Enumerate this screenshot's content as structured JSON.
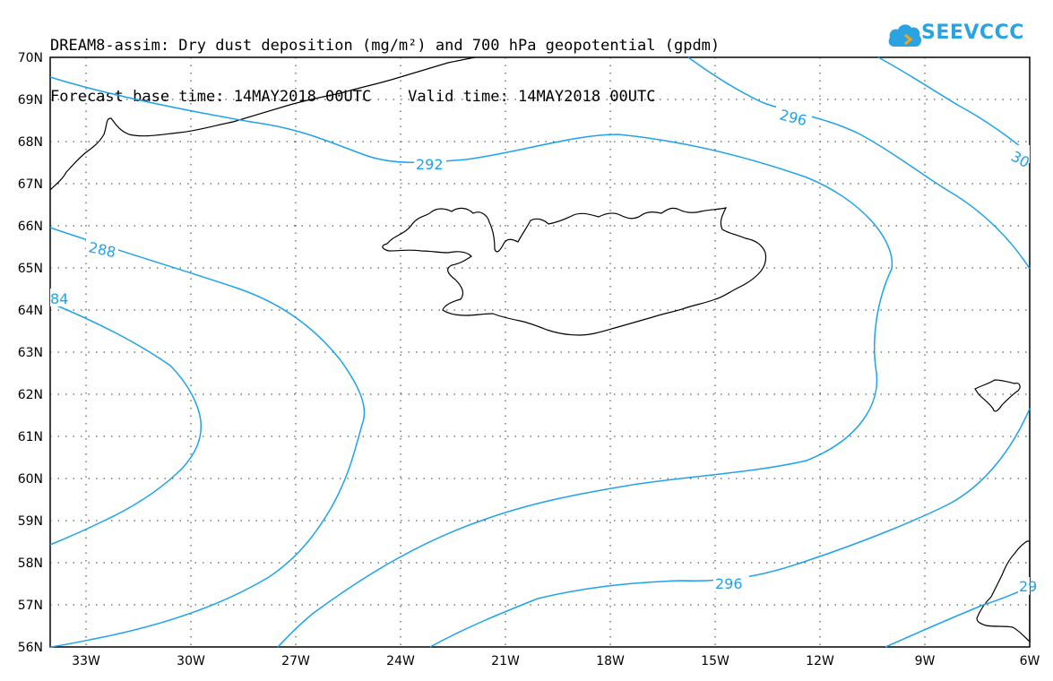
{
  "header": {
    "line1": "DREAM8-assim: Dry dust deposition (mg/m²) and 700 hPa geopotential (gpdm)",
    "line2": "Forecast base time: 14MAY2018 00UTC    Valid time: 14MAY2018 00UTC"
  },
  "logo": {
    "text": "SEEVCCC",
    "icon": "cloud-icon",
    "color": "#2aa3e0"
  },
  "map": {
    "lat_labels": [
      "70N",
      "69N",
      "68N",
      "67N",
      "66N",
      "65N",
      "64N",
      "63N",
      "62N",
      "61N",
      "60N",
      "59N",
      "58N",
      "57N",
      "56N"
    ],
    "lon_labels": [
      "33W",
      "30W",
      "27W",
      "24W",
      "21W",
      "18W",
      "15W",
      "12W",
      "9W",
      "6W"
    ],
    "contour_labels": [
      "292",
      "296",
      "288",
      "84",
      "296",
      "30",
      "29"
    ],
    "contour_color": "#1ea2ee",
    "coast_color": "#000000",
    "grid_style": "dotted"
  }
}
